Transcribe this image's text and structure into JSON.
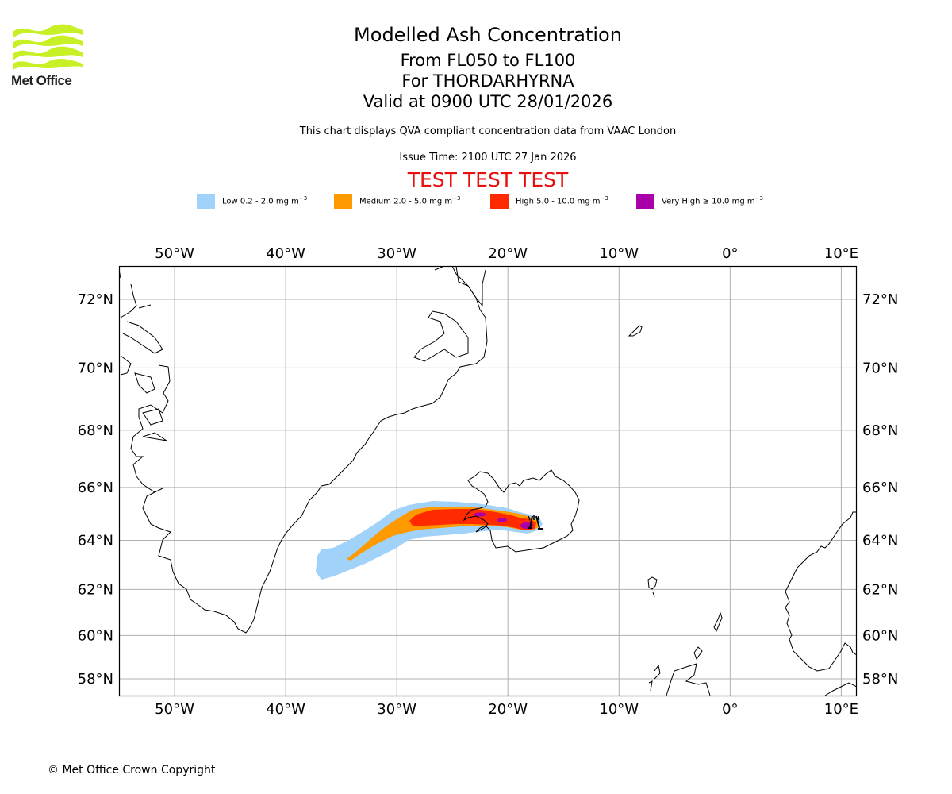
{
  "logo": {
    "name": "met-office-logo",
    "text": "Met Office",
    "color": "#c8f026"
  },
  "title": {
    "main": "Modelled Ash Concentration",
    "levels": "From FL050 to FL100",
    "volcano": "For THORDARHYRNA",
    "valid": "Valid at 0900 UTC 28/01/2026"
  },
  "subtitle": "This chart displays QVA compliant concentration data from VAAC London",
  "issue_time": "Issue Time: 2100 UTC 27 Jan 2026",
  "test_banner": "TEST TEST TEST",
  "legend": [
    {
      "label": "Low 0.2 - 2.0 mg m",
      "unit_sup": "−3",
      "color": "#a0d2fa"
    },
    {
      "label": "Medium 2.0 - 5.0 mg m",
      "unit_sup": "−3",
      "color": "#ff9900"
    },
    {
      "label": "High 5.0 - 10.0 mg m",
      "unit_sup": "−3",
      "color": "#ff2a00"
    },
    {
      "label": "Very High ≥ 10.0 mg m",
      "unit_sup": "−3",
      "color": "#aa00aa"
    }
  ],
  "map": {
    "lon_labels": [
      "50°W",
      "40°W",
      "30°W",
      "20°W",
      "10°W",
      "0°",
      "10°E"
    ],
    "lon_values": [
      -50,
      -40,
      -30,
      -20,
      -10,
      0,
      10
    ],
    "lat_labels": [
      "72°N",
      "70°N",
      "68°N",
      "66°N",
      "64°N",
      "62°N",
      "60°N",
      "58°N"
    ],
    "lat_values": [
      72,
      70,
      68,
      66,
      64,
      62,
      60,
      58
    ],
    "extent": {
      "lon_min": -55,
      "lon_max": 11.4,
      "lat_min": 57.2,
      "lat_max": 72.9
    },
    "volcano_marker": {
      "name": "Thordarhyrna",
      "lon": -17.6,
      "lat": 64.3
    },
    "plume_description": "Ash plume extending west-southwest from Iceland (~17.6W 64.3N) to ~36W 62.5N"
  },
  "copyright": "© Met Office Crown Copyright"
}
